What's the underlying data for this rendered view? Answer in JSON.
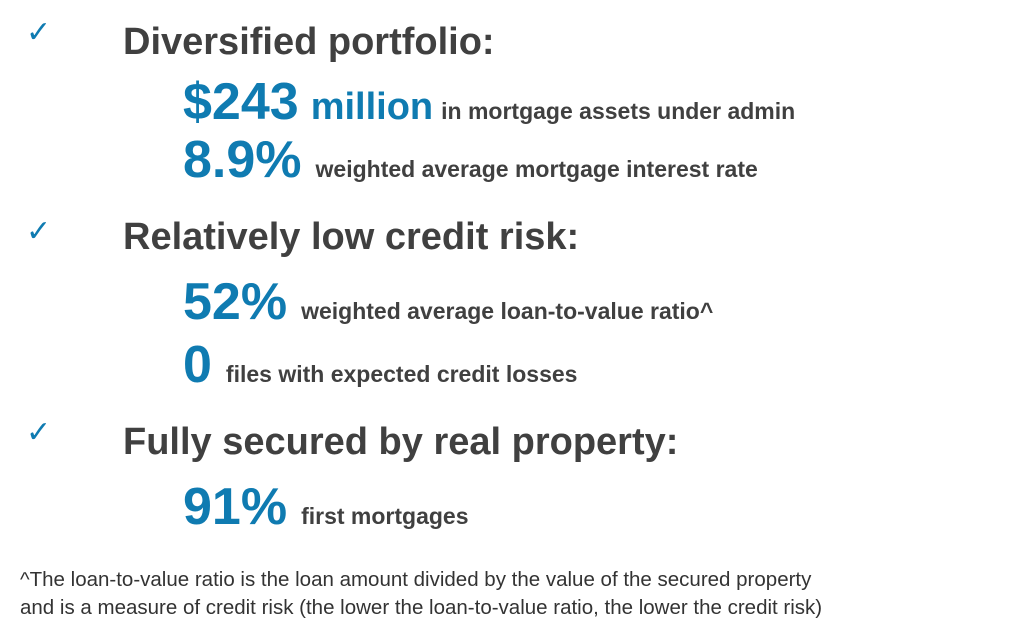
{
  "colors": {
    "accent": "#0f7bb1",
    "text": "#404040"
  },
  "icons": {
    "bullet": "checkmark-icon",
    "glyph": "✓"
  },
  "sections": [
    {
      "heading": "Diversified portfolio:",
      "items": [
        {
          "value": "$243",
          "unit": "million",
          "text": "in mortgage assets under admin"
        },
        {
          "value": "8.9%",
          "text": "weighted average mortgage interest rate"
        }
      ]
    },
    {
      "heading": "Relatively low credit risk:",
      "items": [
        {
          "value": "52%",
          "text": "weighted average loan-to-value ratio^"
        },
        {
          "value": "0",
          "text": "files with expected credit losses"
        }
      ]
    },
    {
      "heading": "Fully secured by real property:",
      "items": [
        {
          "value": "91%",
          "text": "first mortgages"
        }
      ]
    }
  ],
  "footnote": {
    "line1": "^The loan-to-value ratio is the loan amount divided by the value of the secured property",
    "line2": "and is a measure of credit risk (the lower the loan-to-value ratio, the lower the credit risk)"
  }
}
